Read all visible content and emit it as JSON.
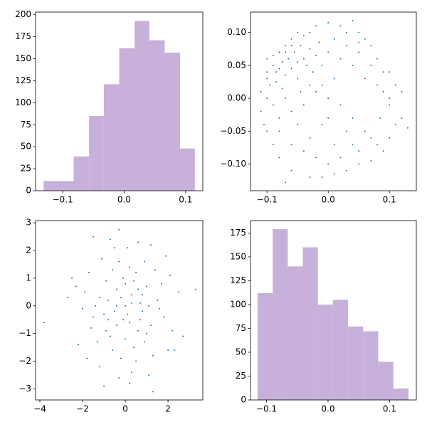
{
  "chart_data": [
    {
      "type": "histogram",
      "color": "#c7b0da",
      "bins": [
        -0.131,
        -0.107,
        -0.082,
        -0.057,
        -0.033,
        -0.008,
        0.017,
        0.041,
        0.066,
        0.091,
        0.115
      ],
      "values": [
        11,
        11,
        39,
        85,
        121,
        162,
        193,
        171,
        157,
        48
      ],
      "xlim": [
        -0.144,
        0.128
      ],
      "xticks": [
        {
          "value": -0.1,
          "label": "−0.1"
        },
        {
          "value": 0,
          "label": "0.0"
        },
        {
          "value": 0.1,
          "label": "0.1"
        }
      ],
      "ylim": [
        0,
        203
      ],
      "yticks": [
        0,
        25,
        50,
        75,
        100,
        125,
        150,
        175,
        200
      ]
    },
    {
      "type": "scatter",
      "color": "#1f77b4",
      "x": [
        -0.1,
        -0.09,
        -0.08,
        -0.07,
        -0.06,
        -0.05,
        -0.04,
        -0.03,
        -0.02,
        0,
        0.02,
        0.04,
        0.05,
        0.07,
        0.08,
        0.1,
        0.11,
        0.12,
        0.13,
        0.12,
        0.1,
        0.09,
        0.07,
        0.05,
        0.03,
        0.01,
        -0.01,
        -0.03,
        -0.06,
        -0.07,
        -0.08,
        -0.09,
        -0.1,
        -0.11,
        -0.11,
        -0.1,
        -0.095,
        -0.085,
        -0.075,
        -0.07,
        -0.065,
        -0.06,
        -0.055,
        -0.05,
        -0.045,
        -0.04,
        -0.035,
        -0.03,
        -0.025,
        -0.02,
        -0.015,
        -0.01,
        0,
        0.01,
        0.02,
        0.03,
        0.04,
        0.05,
        0.06,
        0.07,
        0.08,
        0.09,
        0.1,
        0.085,
        0.06,
        0.04,
        0.02,
        0,
        -0.02,
        -0.04,
        -0.06,
        -0.08,
        -0.09,
        -0.07,
        -0.05,
        -0.03,
        -0.01,
        0.01,
        0.03,
        0.05,
        0.07,
        -0.02,
        -0.04,
        -0.06,
        -0.08,
        0,
        0.02,
        0.04,
        -0.1,
        -0.09,
        -0.08,
        -0.07,
        -0.06,
        -0.05,
        0.06,
        0.05,
        0.03,
        0.01,
        -0.01,
        0,
        0.09,
        0.11,
        0.08,
        -0.03,
        -0.045,
        -0.075,
        -0.085,
        0.1,
        -0.105,
        -0.1
      ],
      "y": [
        0.03,
        0.05,
        0.07,
        0.08,
        0.09,
        0.1,
        0.095,
        0.1,
        0.11,
        0.115,
        0.11,
        0.118,
        0.1,
        0.08,
        0.06,
        0.04,
        0.02,
        0.01,
        -0.045,
        -0.03,
        -0.06,
        -0.08,
        -0.095,
        -0.1,
        -0.11,
        -0.115,
        -0.12,
        -0.12,
        -0.11,
        -0.128,
        -0.09,
        -0.07,
        -0.05,
        -0.02,
        0.01,
        0,
        0.02,
        0.04,
        0.055,
        0.035,
        0.06,
        0.045,
        0.07,
        0.03,
        0.08,
        0.06,
        0.05,
        0.075,
        0.04,
        0.065,
        0.085,
        0.05,
        0.07,
        0.09,
        0.06,
        0.08,
        0.05,
        0.07,
        0.03,
        0.05,
        0.02,
        0.01,
        -0.01,
        -0.03,
        -0.05,
        -0.03,
        -0.01,
        0,
        0.01,
        -0.01,
        -0.02,
        -0.03,
        -0.01,
        0,
        -0.04,
        -0.06,
        -0.04,
        -0.07,
        -0.05,
        -0.08,
        -0.06,
        -0.09,
        -0.08,
        -0.07,
        -0.05,
        -0.1,
        -0.09,
        -0.07,
        0.06,
        0.065,
        0.045,
        0.07,
        0.08,
        0.055,
        0.09,
        0.085,
        0.1,
        0.03,
        0.02,
        -0.03,
        0.04,
        -0.04,
        -0.07,
        0.02,
        0.01,
        0.015,
        0.025,
        0,
        -0.04,
        0.04
      ],
      "xlim": [
        -0.127,
        0.144
      ],
      "xticks": [
        {
          "value": -0.1,
          "label": "−0.1"
        },
        {
          "value": 0,
          "label": "0.0"
        },
        {
          "value": 0.1,
          "label": "0.1"
        }
      ],
      "ylim": [
        -0.1405,
        0.131
      ],
      "yticks": [
        {
          "value": -0.1,
          "label": "−0.10"
        },
        {
          "value": -0.05,
          "label": "−0.05"
        },
        {
          "value": 0,
          "label": "0.00"
        },
        {
          "value": 0.05,
          "label": "0.05"
        },
        {
          "value": 0.1,
          "label": "0.10"
        }
      ]
    },
    {
      "type": "scatter",
      "color": "#1f77b4",
      "x": [
        -3.8,
        3.3,
        -2.5,
        -2.2,
        -1.5,
        -1,
        -0.3,
        1.3,
        2.5,
        2.3,
        2,
        0,
        0.3,
        -0.4,
        -0.8,
        0.6,
        1,
        -1.2,
        1.5,
        -0.6,
        0.4,
        -1.6,
        0.9,
        -0.2,
        0.1,
        1.8,
        -1.9,
        0.7,
        -0.5,
        0.2,
        -0.9,
        1.2,
        -0.1,
        0.5,
        -1.3,
        1.4,
        -0.7,
        0.8,
        -1.1,
        0.3,
        -2,
        2.1,
        -0.4,
        0.6,
        -1.4,
        1.1,
        0,
        -0.3,
        0.9,
        -0.8,
        1.7,
        -1.7,
        0.4,
        -0.6,
        0.2,
        1.3,
        -1,
        0.7,
        -0.2,
        0.1,
        2.2,
        -2.3,
        1.9,
        -1.2,
        0.5,
        -0.5,
        0,
        -0.9,
        1,
        0.3,
        -0.1,
        0.8,
        -1.5,
        1.6,
        -0.4,
        0.6,
        -0.7,
        1.2,
        -1.8,
        2.7,
        -2.7,
        0.2,
        1.1,
        -0.3
      ],
      "y": [
        -0.6,
        0.6,
        1,
        -1.4,
        2.5,
        -2.9,
        2.75,
        -3.1,
        0.5,
        -1.6,
        -1.6,
        0,
        0.4,
        0.6,
        -0.5,
        -0.9,
        0.7,
        0.3,
        0.2,
        1.3,
        -1.5,
        -0.8,
        1.6,
        -1.9,
        2.1,
        -0.4,
        0.5,
        0.1,
        -0.2,
        -0.6,
        0.9,
        -0.7,
        1,
        1.2,
        -1.3,
        1.3,
        -1.1,
        -0.2,
        1.7,
        -2.4,
        -0.1,
        1.1,
        -0.7,
        0.6,
        0,
        0,
        -1.2,
        1.6,
        -1.3,
        0.2,
        0.8,
        1.2,
        0.9,
        -1.6,
        1.4,
        -1.8,
        -0.3,
        -0.5,
        0.3,
        -0.3,
        -0.9,
        0.7,
        1.8,
        -2.2,
        -2,
        2.1,
        0.8,
        -0.9,
        -1,
        0.1,
        -0.5,
        0.4,
        -0.4,
        -0.1,
        0,
        2.3,
        2.4,
        2.2,
        -1.9,
        -1.1,
        0.3,
        -2.8,
        -2.5,
        -2.6
      ],
      "xlim": [
        -4.2,
        3.63
      ],
      "xticks": [
        {
          "value": -4,
          "label": "−4"
        },
        {
          "value": -2,
          "label": "−2"
        },
        0,
        2
      ],
      "ylim": [
        -3.4,
        3.08
      ],
      "yticks": [
        {
          "value": -3,
          "label": "−3"
        },
        {
          "value": -2,
          "label": "−2"
        },
        {
          "value": -1,
          "label": "−1"
        },
        0,
        1,
        2,
        3
      ]
    },
    {
      "type": "histogram",
      "color": "#c7b0da",
      "bins": [
        -0.1145,
        -0.09,
        -0.0655,
        -0.041,
        -0.0165,
        0.008,
        0.0325,
        0.057,
        0.0815,
        0.106,
        0.1306
      ],
      "values": [
        112,
        179,
        140,
        160,
        100,
        105,
        77,
        72,
        40,
        12
      ],
      "xlim": [
        -0.126,
        0.1434
      ],
      "xticks": [
        {
          "value": -0.1,
          "label": "−0.1"
        },
        {
          "value": 0,
          "label": "0.0"
        },
        {
          "value": 0.1,
          "label": "0.1"
        }
      ],
      "ylim": [
        0,
        188
      ],
      "yticks": [
        0,
        25,
        50,
        75,
        100,
        125,
        150,
        175
      ]
    }
  ]
}
